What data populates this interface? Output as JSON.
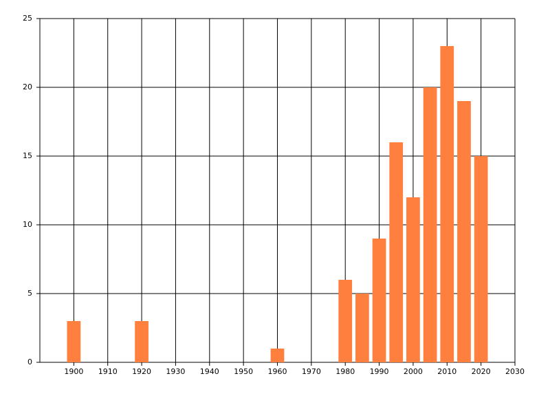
{
  "chart_data": {
    "type": "bar",
    "x": [
      1900,
      1920,
      1960,
      1980,
      1985,
      1990,
      1995,
      2000,
      2005,
      2010,
      2015,
      2020
    ],
    "values": [
      3,
      3,
      1,
      6,
      5,
      9,
      16,
      12,
      20,
      23,
      19,
      15
    ],
    "color": "#ff7f3f",
    "xlim": [
      1890,
      2030
    ],
    "xticks": [
      1900,
      1910,
      1920,
      1930,
      1940,
      1950,
      1960,
      1970,
      1980,
      1990,
      2000,
      2010,
      2020,
      2030
    ],
    "ylim": [
      0,
      25
    ],
    "yticks": [
      0,
      5,
      10,
      15,
      20,
      25
    ],
    "grid": true
  }
}
